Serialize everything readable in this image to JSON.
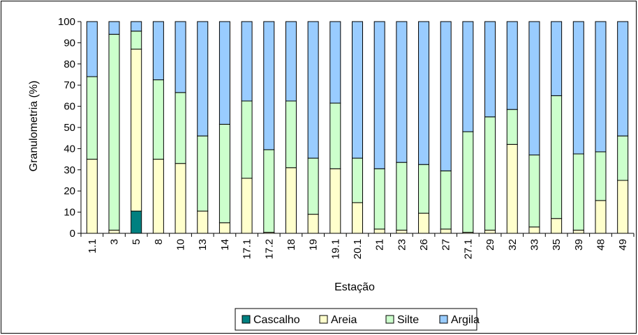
{
  "chart_data": {
    "type": "bar",
    "stacked": true,
    "percent_stacked": true,
    "title": "",
    "xlabel": "Estação",
    "ylabel": "Granulometria (%)",
    "ylim": [
      0,
      100
    ],
    "yticks": [
      0,
      10,
      20,
      30,
      40,
      50,
      60,
      70,
      80,
      90,
      100
    ],
    "grid": false,
    "legend_position": "bottom",
    "categories": [
      "1.1",
      "3",
      "5",
      "8",
      "10",
      "13",
      "14",
      "17.1",
      "17.2",
      "18",
      "19",
      "19.1",
      "20.1",
      "21",
      "23",
      "26",
      "27",
      "27.1",
      "29",
      "32",
      "33",
      "35",
      "39",
      "48",
      "49"
    ],
    "series": [
      {
        "name": "Cascalho",
        "color": "#008080",
        "values": [
          0,
          0,
          10.5,
          0,
          0,
          0,
          0,
          0,
          0,
          0,
          0,
          0,
          0,
          0,
          0,
          0,
          0,
          0,
          0,
          0,
          0,
          0,
          0,
          0,
          0
        ]
      },
      {
        "name": "Areia",
        "color": "#FFFFCC",
        "values": [
          35,
          1.5,
          76.5,
          35,
          33,
          10.5,
          5,
          26,
          0.5,
          31,
          9,
          30.5,
          14.5,
          2,
          1.5,
          9.5,
          2,
          0.5,
          1.5,
          42,
          3,
          7,
          1.5,
          15.5,
          25
        ]
      },
      {
        "name": "Silte",
        "color": "#CCFFCC",
        "values": [
          39,
          92.5,
          8.5,
          37.5,
          33.5,
          35.5,
          46.5,
          36.5,
          39,
          31.5,
          26.5,
          31,
          21,
          28.5,
          32,
          23,
          27.5,
          47.5,
          53.5,
          16.5,
          34,
          58,
          36,
          23,
          21
        ]
      },
      {
        "name": "Argila",
        "color": "#99CCFF",
        "values": [
          26,
          6,
          4.5,
          27.5,
          33.5,
          54,
          48.5,
          37.5,
          60.5,
          37.5,
          64.5,
          38.5,
          64.5,
          69.5,
          66.5,
          67.5,
          70.5,
          52,
          45,
          41.5,
          63,
          35,
          62.5,
          61.5,
          54
        ]
      }
    ]
  }
}
